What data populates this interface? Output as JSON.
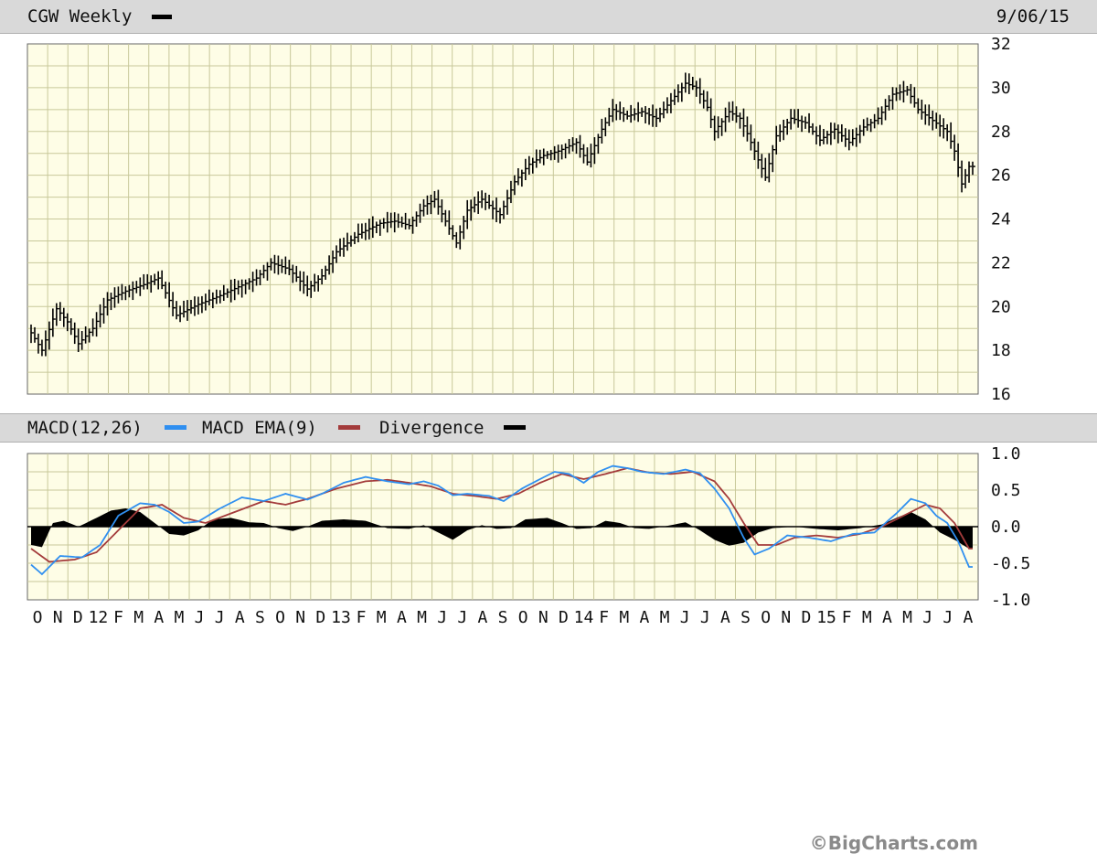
{
  "header": {
    "symbol_label": "CGW Weekly",
    "date": "9/06/15",
    "macd_label": "MACD(12,26)",
    "ema_label": "MACD EMA(9)",
    "div_label": "Divergence",
    "copyright": "©BigCharts.com"
  },
  "colors": {
    "background": "#fefde6",
    "grid": "#c8c89a",
    "price": "#000000",
    "macd": "#2f8ff0",
    "ema": "#a33b3b",
    "divergence": "#000000"
  },
  "chart_data": [
    {
      "type": "ohlc",
      "title": "CGW Weekly",
      "ylim": [
        16,
        32
      ],
      "yticks": [
        "32",
        "30",
        "28",
        "26",
        "24",
        "22",
        "20",
        "18",
        "16"
      ],
      "grid": true,
      "x_tick_labels": [
        "O",
        "N",
        "D",
        "12",
        "F",
        "M",
        "A",
        "M",
        "J",
        "J",
        "A",
        "S",
        "O",
        "N",
        "D",
        "13",
        "F",
        "M",
        "A",
        "M",
        "J",
        "J",
        "A",
        "S",
        "O",
        "N",
        "D",
        "14",
        "F",
        "M",
        "A",
        "M",
        "J",
        "J",
        "A",
        "S",
        "O",
        "N",
        "D",
        "15",
        "F",
        "M",
        "A",
        "M",
        "J",
        "J",
        "A"
      ],
      "anchors": [
        [
          0,
          18.8
        ],
        [
          3,
          18.0
        ],
        [
          7,
          19.9
        ],
        [
          10,
          19.3
        ],
        [
          13,
          18.3
        ],
        [
          17,
          19.0
        ],
        [
          21,
          20.3
        ],
        [
          26,
          20.7
        ],
        [
          31,
          21.0
        ],
        [
          35,
          21.3
        ],
        [
          40,
          19.6
        ],
        [
          46,
          20.1
        ],
        [
          52,
          20.5
        ],
        [
          57,
          20.9
        ],
        [
          62,
          21.3
        ],
        [
          66,
          22.0
        ],
        [
          71,
          21.7
        ],
        [
          76,
          20.8
        ],
        [
          80,
          21.4
        ],
        [
          84,
          22.5
        ],
        [
          90,
          23.3
        ],
        [
          96,
          23.8
        ],
        [
          100,
          23.9
        ],
        [
          104,
          23.7
        ],
        [
          108,
          24.6
        ],
        [
          111,
          24.9
        ],
        [
          114,
          23.9
        ],
        [
          117,
          22.9
        ],
        [
          120,
          24.4
        ],
        [
          124,
          24.9
        ],
        [
          129,
          24.2
        ],
        [
          133,
          25.7
        ],
        [
          137,
          26.5
        ],
        [
          141,
          26.9
        ],
        [
          145,
          27.1
        ],
        [
          150,
          27.5
        ],
        [
          153,
          26.6
        ],
        [
          157,
          28.1
        ],
        [
          160,
          29.0
        ],
        [
          164,
          28.7
        ],
        [
          168,
          28.9
        ],
        [
          172,
          28.6
        ],
        [
          176,
          29.4
        ],
        [
          180,
          30.2
        ],
        [
          183,
          30.0
        ],
        [
          186,
          29.1
        ],
        [
          188,
          28.0
        ],
        [
          192,
          28.9
        ],
        [
          195,
          28.6
        ],
        [
          197,
          27.9
        ],
        [
          200,
          26.7
        ],
        [
          202,
          25.9
        ],
        [
          205,
          27.8
        ],
        [
          209,
          28.6
        ],
        [
          213,
          28.4
        ],
        [
          217,
          27.6
        ],
        [
          221,
          28.1
        ],
        [
          225,
          27.5
        ],
        [
          229,
          28.2
        ],
        [
          233,
          28.6
        ],
        [
          237,
          29.7
        ],
        [
          241,
          29.9
        ],
        [
          244,
          29.0
        ],
        [
          248,
          28.5
        ],
        [
          252,
          28.0
        ],
        [
          254,
          27.1
        ],
        [
          256,
          25.6
        ],
        [
          258,
          26.4
        ]
      ]
    },
    {
      "type": "line",
      "title": "MACD(12,26)",
      "ylim": [
        -1.0,
        1.0
      ],
      "yticks": [
        "1.0",
        "0.5",
        "0.0",
        "-0.5",
        "-1.0"
      ],
      "grid": true,
      "series": [
        {
          "name": "MACD(12,26)",
          "values": [
            [
              0,
              -0.52
            ],
            [
              3,
              -0.65
            ],
            [
              8,
              -0.4
            ],
            [
              14,
              -0.42
            ],
            [
              19,
              -0.25
            ],
            [
              24,
              0.15
            ],
            [
              30,
              0.32
            ],
            [
              34,
              0.3
            ],
            [
              38,
              0.2
            ],
            [
              42,
              0.05
            ],
            [
              46,
              0.07
            ],
            [
              52,
              0.25
            ],
            [
              58,
              0.4
            ],
            [
              64,
              0.35
            ],
            [
              70,
              0.45
            ],
            [
              76,
              0.37
            ],
            [
              80,
              0.45
            ],
            [
              86,
              0.6
            ],
            [
              92,
              0.68
            ],
            [
              98,
              0.62
            ],
            [
              104,
              0.58
            ],
            [
              108,
              0.62
            ],
            [
              112,
              0.56
            ],
            [
              116,
              0.43
            ],
            [
              120,
              0.45
            ],
            [
              126,
              0.42
            ],
            [
              130,
              0.35
            ],
            [
              135,
              0.52
            ],
            [
              140,
              0.65
            ],
            [
              144,
              0.75
            ],
            [
              148,
              0.72
            ],
            [
              152,
              0.6
            ],
            [
              156,
              0.75
            ],
            [
              160,
              0.83
            ],
            [
              164,
              0.8
            ],
            [
              168,
              0.75
            ],
            [
              174,
              0.72
            ],
            [
              180,
              0.78
            ],
            [
              184,
              0.73
            ],
            [
              188,
              0.52
            ],
            [
              192,
              0.25
            ],
            [
              196,
              -0.15
            ],
            [
              199,
              -0.38
            ],
            [
              203,
              -0.3
            ],
            [
              208,
              -0.12
            ],
            [
              214,
              -0.15
            ],
            [
              220,
              -0.2
            ],
            [
              226,
              -0.1
            ],
            [
              232,
              -0.08
            ],
            [
              238,
              0.18
            ],
            [
              242,
              0.38
            ],
            [
              246,
              0.32
            ],
            [
              249,
              0.15
            ],
            [
              252,
              0.05
            ],
            [
              255,
              -0.2
            ],
            [
              258,
              -0.55
            ]
          ]
        },
        {
          "name": "MACD EMA(9)",
          "values": [
            [
              0,
              -0.3
            ],
            [
              5,
              -0.48
            ],
            [
              12,
              -0.45
            ],
            [
              18,
              -0.35
            ],
            [
              24,
              -0.05
            ],
            [
              30,
              0.25
            ],
            [
              36,
              0.3
            ],
            [
              42,
              0.12
            ],
            [
              48,
              0.05
            ],
            [
              56,
              0.2
            ],
            [
              64,
              0.35
            ],
            [
              70,
              0.3
            ],
            [
              76,
              0.38
            ],
            [
              84,
              0.52
            ],
            [
              92,
              0.62
            ],
            [
              98,
              0.64
            ],
            [
              104,
              0.6
            ],
            [
              110,
              0.55
            ],
            [
              116,
              0.45
            ],
            [
              122,
              0.42
            ],
            [
              128,
              0.38
            ],
            [
              134,
              0.45
            ],
            [
              140,
              0.6
            ],
            [
              146,
              0.72
            ],
            [
              152,
              0.65
            ],
            [
              158,
              0.72
            ],
            [
              164,
              0.8
            ],
            [
              170,
              0.74
            ],
            [
              176,
              0.72
            ],
            [
              182,
              0.75
            ],
            [
              188,
              0.62
            ],
            [
              192,
              0.38
            ],
            [
              196,
              0.05
            ],
            [
              200,
              -0.25
            ],
            [
              205,
              -0.25
            ],
            [
              210,
              -0.15
            ],
            [
              216,
              -0.12
            ],
            [
              222,
              -0.15
            ],
            [
              228,
              -0.1
            ],
            [
              234,
              0.0
            ],
            [
              240,
              0.15
            ],
            [
              246,
              0.3
            ],
            [
              250,
              0.25
            ],
            [
              254,
              0.05
            ],
            [
              258,
              -0.3
            ]
          ]
        },
        {
          "name": "Divergence",
          "values": [
            [
              0,
              -0.25
            ],
            [
              3,
              -0.28
            ],
            [
              6,
              0.05
            ],
            [
              9,
              0.08
            ],
            [
              13,
              0.0
            ],
            [
              18,
              0.12
            ],
            [
              22,
              0.22
            ],
            [
              26,
              0.25
            ],
            [
              30,
              0.2
            ],
            [
              34,
              0.05
            ],
            [
              38,
              -0.1
            ],
            [
              42,
              -0.12
            ],
            [
              46,
              -0.05
            ],
            [
              50,
              0.1
            ],
            [
              55,
              0.12
            ],
            [
              60,
              0.06
            ],
            [
              64,
              0.05
            ],
            [
              68,
              -0.02
            ],
            [
              72,
              -0.06
            ],
            [
              76,
              0.0
            ],
            [
              80,
              0.08
            ],
            [
              86,
              0.1
            ],
            [
              92,
              0.08
            ],
            [
              98,
              -0.02
            ],
            [
              104,
              -0.03
            ],
            [
              108,
              0.02
            ],
            [
              112,
              -0.08
            ],
            [
              116,
              -0.18
            ],
            [
              120,
              -0.05
            ],
            [
              124,
              0.02
            ],
            [
              128,
              -0.03
            ],
            [
              132,
              -0.02
            ],
            [
              136,
              0.1
            ],
            [
              142,
              0.12
            ],
            [
              146,
              0.05
            ],
            [
              150,
              -0.03
            ],
            [
              154,
              -0.02
            ],
            [
              158,
              0.08
            ],
            [
              162,
              0.05
            ],
            [
              166,
              -0.02
            ],
            [
              170,
              -0.03
            ],
            [
              176,
              0.02
            ],
            [
              180,
              0.06
            ],
            [
              184,
              -0.05
            ],
            [
              188,
              -0.18
            ],
            [
              192,
              -0.26
            ],
            [
              196,
              -0.22
            ],
            [
              200,
              -0.08
            ],
            [
              204,
              -0.02
            ],
            [
              210,
              0.0
            ],
            [
              216,
              -0.03
            ],
            [
              222,
              -0.05
            ],
            [
              228,
              -0.02
            ],
            [
              234,
              0.03
            ],
            [
              238,
              0.12
            ],
            [
              242,
              0.2
            ],
            [
              246,
              0.1
            ],
            [
              250,
              -0.08
            ],
            [
              254,
              -0.18
            ],
            [
              258,
              -0.3
            ]
          ]
        }
      ]
    }
  ]
}
